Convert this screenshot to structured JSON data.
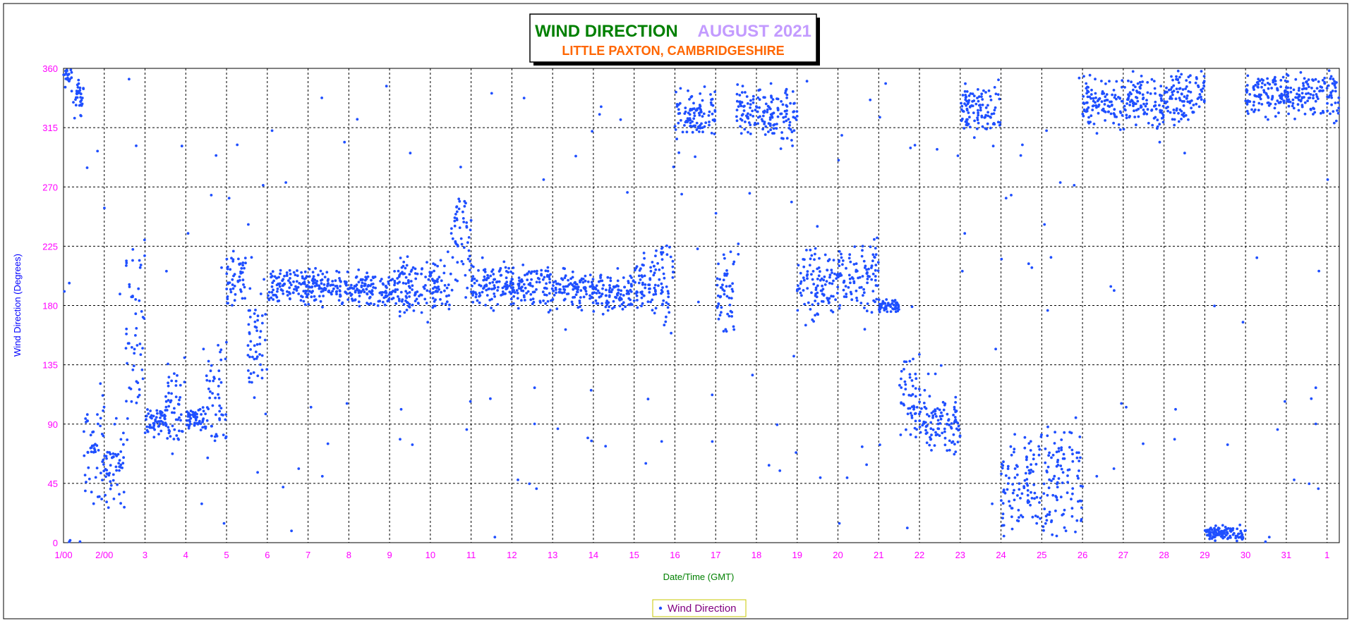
{
  "title": {
    "main": "WIND DIRECTION",
    "period": "AUGUST 2021",
    "location": "LITTLE PAXTON, CAMBRIDGESHIRE"
  },
  "colors": {
    "main_title": "#008000",
    "period": "#c39bff",
    "location": "#ff6600",
    "axis_text": "#ff00ff",
    "ylabel": "#0000ff",
    "xlabel": "#008000",
    "series": "#1f4fff",
    "legend_text": "#800080",
    "legend_border": "#c8c800"
  },
  "chart_data": {
    "type": "scatter",
    "title": "WIND DIRECTION AUGUST 2021",
    "subtitle": "LITTLE PAXTON, CAMBRIDGESHIRE",
    "xlabel": "Date/Time (GMT)",
    "ylabel": "Wind Direction (Degrees)",
    "ylim": [
      0,
      360
    ],
    "yticks": [
      0,
      45,
      90,
      135,
      180,
      225,
      270,
      315,
      360
    ],
    "xlim": [
      1,
      32.3
    ],
    "xticks": [
      1,
      2,
      3,
      4,
      5,
      6,
      7,
      8,
      9,
      10,
      11,
      12,
      13,
      14,
      15,
      16,
      17,
      18,
      19,
      20,
      21,
      22,
      23,
      24,
      25,
      26,
      27,
      28,
      29,
      30,
      31,
      32
    ],
    "xtick_labels": [
      "1/00",
      "2/00",
      "3",
      "4",
      "5",
      "6",
      "7",
      "8",
      "9",
      "10",
      "11",
      "12",
      "13",
      "14",
      "15",
      "16",
      "17",
      "18",
      "19",
      "20",
      "21",
      "22",
      "23",
      "24",
      "25",
      "26",
      "27",
      "28",
      "29",
      "30",
      "31",
      "1"
    ],
    "grid": true,
    "legend_position": "bottom-center",
    "series": [
      {
        "name": "Wind Direction",
        "approx_by_day": {
          "x_day_start": [
            1,
            1.2,
            1.5,
            2,
            2.5,
            3,
            3.5,
            4,
            4.5,
            5,
            5.5,
            6,
            7,
            8,
            9,
            10,
            10.5,
            11,
            12,
            13,
            14,
            15,
            15.5,
            16,
            16.5,
            17,
            17.5,
            18,
            18.5,
            19,
            19.5,
            20,
            21,
            21.5,
            22,
            23,
            24,
            25,
            26,
            27,
            28,
            29,
            30,
            31
          ],
          "x_day_end": [
            1.2,
            1.5,
            2,
            2.5,
            3,
            3.5,
            4,
            4.5,
            5,
            5.5,
            6,
            7,
            8,
            9,
            10,
            10.5,
            11,
            12,
            13,
            14,
            15,
            15.5,
            16,
            16.5,
            17,
            17.5,
            18,
            18.5,
            19,
            19.5,
            20,
            21,
            21.5,
            22,
            23,
            24,
            25,
            26,
            27,
            28,
            29,
            30,
            31,
            32.3
          ],
          "center_deg": [
            355,
            340,
            70,
            55,
            160,
            92,
            105,
            94,
            110,
            200,
            150,
            195,
            195,
            192,
            195,
            195,
            230,
            195,
            195,
            193,
            190,
            198,
            195,
            325,
            325,
            190,
            330,
            325,
            325,
            200,
            195,
            200,
            180,
            110,
            90,
            330,
            45,
            45,
            335,
            335,
            340,
            7,
            340,
            340
          ],
          "spread_deg": [
            8,
            15,
            40,
            25,
            60,
            10,
            30,
            10,
            40,
            20,
            40,
            12,
            12,
            12,
            18,
            20,
            40,
            15,
            14,
            12,
            14,
            22,
            30,
            15,
            15,
            30,
            18,
            18,
            20,
            30,
            20,
            25,
            5,
            30,
            20,
            18,
            35,
            40,
            18,
            18,
            18,
            5,
            15,
            15
          ]
        }
      }
    ]
  },
  "legend": {
    "label": "Wind Direction"
  }
}
